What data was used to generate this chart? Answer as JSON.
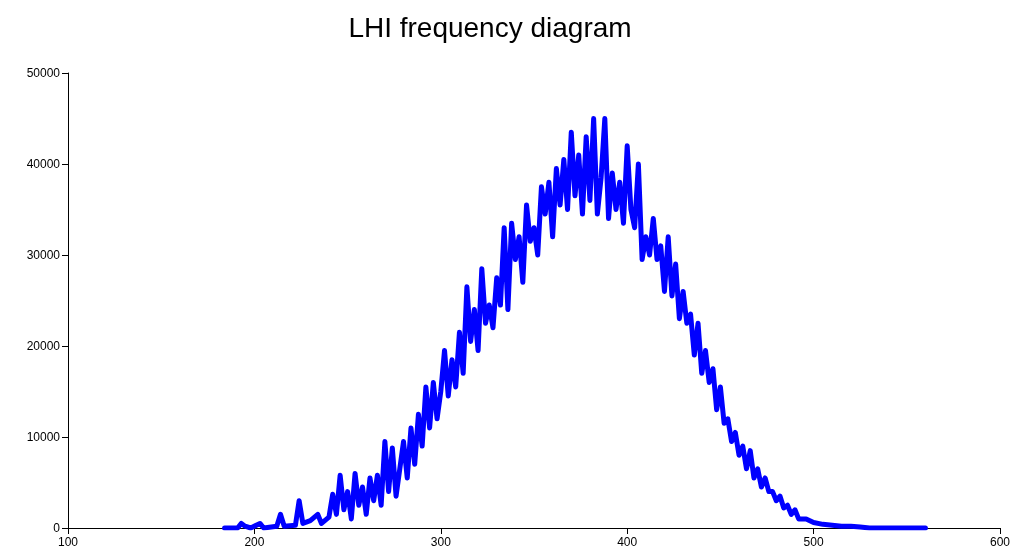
{
  "chart_data": {
    "type": "line",
    "title": "LHI frequency diagram",
    "xlim": [
      100,
      600
    ],
    "xticks": [
      100,
      200,
      300,
      400,
      500,
      600
    ],
    "ylim": [
      0,
      50000
    ],
    "yticks": [
      0,
      10000,
      20000,
      30000,
      40000,
      50000
    ],
    "grid": false,
    "marker": "none",
    "line_style": "solid",
    "series": [
      {
        "color": "#0000ff",
        "x": [
          184,
          188,
          191,
          193,
          195,
          198,
          203,
          205,
          212,
          214,
          216,
          222,
          224,
          226,
          230,
          234,
          236,
          240,
          242,
          244,
          246,
          248,
          250,
          252,
          254,
          256,
          258,
          260,
          262,
          264,
          266,
          268,
          270,
          272,
          274,
          276,
          278,
          280,
          282,
          284,
          286,
          288,
          290,
          292,
          294,
          296,
          298,
          300,
          302,
          304,
          306,
          308,
          310,
          312,
          314,
          316,
          318,
          320,
          322,
          324,
          326,
          328,
          330,
          332,
          334,
          336,
          338,
          340,
          342,
          344,
          346,
          348,
          350,
          352,
          354,
          356,
          358,
          360,
          362,
          364,
          366,
          368,
          370,
          372,
          374,
          376,
          378,
          380,
          382,
          384,
          386,
          388,
          390,
          392,
          394,
          396,
          398,
          400,
          402,
          404,
          406,
          408,
          410,
          412,
          414,
          416,
          418,
          420,
          422,
          424,
          426,
          428,
          430,
          432,
          434,
          436,
          438,
          440,
          442,
          444,
          446,
          448,
          450,
          452,
          454,
          456,
          458,
          460,
          462,
          464,
          466,
          468,
          470,
          472,
          474,
          476,
          478,
          480,
          482,
          484,
          486,
          488,
          490,
          492,
          496,
          500,
          505,
          510,
          515,
          520,
          525,
          530,
          540,
          550,
          560
        ],
        "values": [
          0,
          0,
          0,
          500,
          200,
          0,
          500,
          0,
          200,
          1500,
          200,
          300,
          3000,
          500,
          800,
          1500,
          500,
          1200,
          3700,
          1500,
          5800,
          2000,
          4000,
          1000,
          6000,
          2500,
          4500,
          1500,
          5500,
          3000,
          5800,
          2500,
          9500,
          4000,
          8800,
          3500,
          6500,
          9500,
          5500,
          11000,
          7000,
          12500,
          9000,
          15500,
          11000,
          16000,
          12000,
          15000,
          19500,
          14500,
          18500,
          15500,
          21500,
          17000,
          26500,
          20500,
          24000,
          19500,
          28500,
          22500,
          24500,
          22000,
          27500,
          24500,
          33000,
          24000,
          33500,
          29500,
          32000,
          27000,
          35500,
          31500,
          33000,
          30000,
          37500,
          34500,
          38000,
          32000,
          39500,
          35500,
          40500,
          35000,
          43500,
          36500,
          41000,
          34500,
          43000,
          36000,
          45000,
          34500,
          38500,
          45000,
          34000,
          39000,
          35000,
          38000,
          33500,
          42000,
          35000,
          33000,
          40000,
          29500,
          32000,
          30000,
          34000,
          29500,
          31000,
          26000,
          32000,
          25500,
          29000,
          23000,
          26000,
          22500,
          23500,
          19000,
          22500,
          17000,
          19500,
          16000,
          17500,
          13000,
          15500,
          11500,
          12000,
          9500,
          10500,
          8000,
          9000,
          6500,
          8500,
          5500,
          6500,
          4500,
          5500,
          4000,
          4000,
          3000,
          3500,
          2200,
          2500,
          1500,
          2000,
          1000,
          1000,
          600,
          400,
          300,
          200,
          200,
          100,
          0,
          0,
          0,
          0
        ]
      }
    ]
  }
}
